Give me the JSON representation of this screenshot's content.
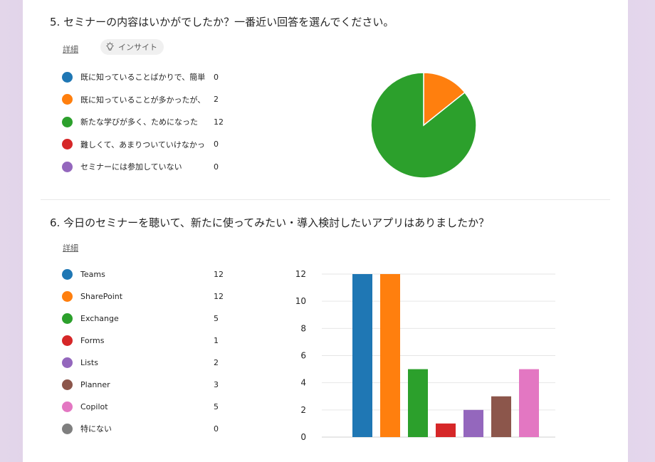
{
  "q5": {
    "title": "5.  セミナーの内容はいかがでしたか？一番近い回答を選んでください。",
    "details_link": "詳細",
    "insights_label": "インサイト",
    "legend": [
      {
        "label": "既に知っていることばかりで、簡単す...",
        "count": "0",
        "color": "#1f77b4"
      },
      {
        "label": "既に知っていることが多かったが、新...",
        "count": "2",
        "color": "#ff7f0e"
      },
      {
        "label": "新たな学びが多く、ためになった",
        "count": "12",
        "color": "#2ca02c"
      },
      {
        "label": "難しくて、あまりついていけなかった",
        "count": "0",
        "color": "#d62728"
      },
      {
        "label": "セミナーには参加していない",
        "count": "0",
        "color": "#9467bd"
      }
    ]
  },
  "q6": {
    "title": "6.  今日のセミナーを聴いて、新たに使ってみたい・導入検討したいアプリはありましたか？",
    "details_link": "詳細",
    "legend": [
      {
        "label": "Teams",
        "count": "12",
        "color": "#1f77b4"
      },
      {
        "label": "SharePoint",
        "count": "12",
        "color": "#ff7f0e"
      },
      {
        "label": "Exchange",
        "count": "5",
        "color": "#2ca02c"
      },
      {
        "label": "Forms",
        "count": "1",
        "color": "#d62728"
      },
      {
        "label": "Lists",
        "count": "2",
        "color": "#9467bd"
      },
      {
        "label": "Planner",
        "count": "3",
        "color": "#8c564b"
      },
      {
        "label": "Copilot",
        "count": "5",
        "color": "#e377c2"
      },
      {
        "label": "特にない",
        "count": "0",
        "color": "#7f7f7f"
      }
    ]
  },
  "chart_data": [
    {
      "type": "pie",
      "categories": [
        "既に知っていることばかりで、簡単す...",
        "既に知っていることが多かったが、新...",
        "新たな学びが多く、ためになった",
        "難しくて、あまりついていけなかった",
        "セミナーには参加していない"
      ],
      "values": [
        0,
        2,
        12,
        0,
        0
      ],
      "colors": [
        "#1f77b4",
        "#ff7f0e",
        "#2ca02c",
        "#d62728",
        "#9467bd"
      ]
    },
    {
      "type": "bar",
      "categories": [
        "Teams",
        "SharePoint",
        "Exchange",
        "Forms",
        "Lists",
        "Planner",
        "Copilot",
        "特にない"
      ],
      "values": [
        12,
        12,
        5,
        1,
        2,
        3,
        5,
        0
      ],
      "colors": [
        "#1f77b4",
        "#ff7f0e",
        "#2ca02c",
        "#d62728",
        "#9467bd",
        "#8c564b",
        "#e377c2",
        "#7f7f7f"
      ],
      "ylim": [
        0,
        12
      ],
      "yticks": [
        "0",
        "2",
        "4",
        "6",
        "8",
        "10",
        "12"
      ],
      "grid": true
    }
  ]
}
